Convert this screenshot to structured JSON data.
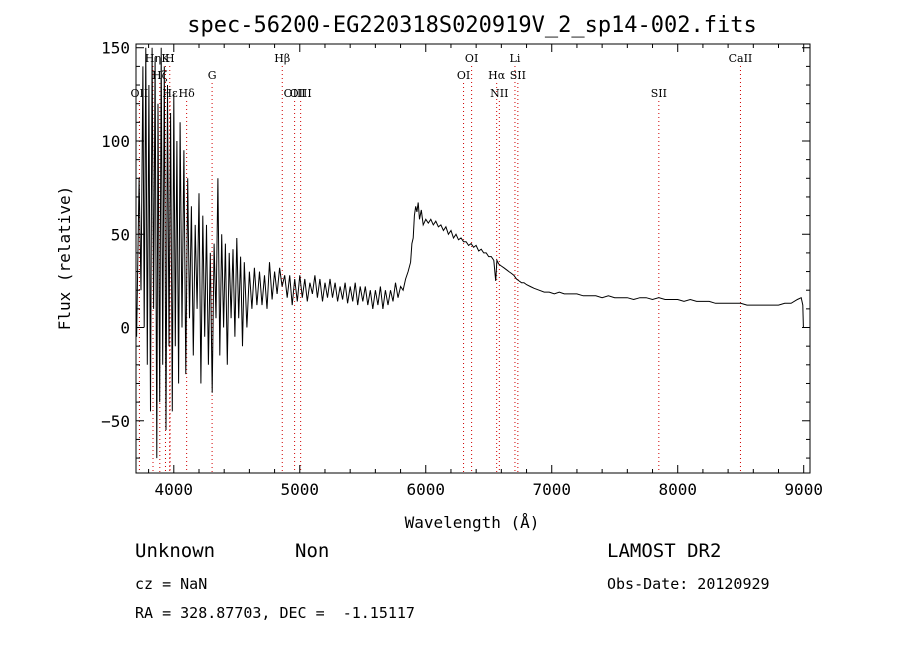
{
  "chart_data": {
    "type": "line",
    "title": "spec-56200-EG220318S020919V_2_sp14-002.fits",
    "xlabel": "Wavelength (Å)",
    "ylabel": "Flux (relative)",
    "xlim": [
      3700,
      9050
    ],
    "ylim": [
      -78,
      152
    ],
    "x_ticks": [
      4000,
      5000,
      6000,
      7000,
      8000,
      9000
    ],
    "y_ticks": [
      -50,
      0,
      50,
      100,
      150
    ],
    "series": [
      {
        "color": "#000000",
        "points": [
          [
            3705,
            -5
          ],
          [
            3725,
            80
          ],
          [
            3740,
            20
          ],
          [
            3755,
            140
          ],
          [
            3765,
            0
          ],
          [
            3778,
            150
          ],
          [
            3790,
            -20
          ],
          [
            3802,
            130
          ],
          [
            3815,
            -45
          ],
          [
            3828,
            150
          ],
          [
            3840,
            10
          ],
          [
            3852,
            145
          ],
          [
            3865,
            -70
          ],
          [
            3875,
            120
          ],
          [
            3888,
            -40
          ],
          [
            3900,
            150
          ],
          [
            3912,
            -20
          ],
          [
            3925,
            140
          ],
          [
            3938,
            -55
          ],
          [
            3950,
            130
          ],
          [
            3962,
            -10
          ],
          [
            3975,
            115
          ],
          [
            3988,
            -45
          ],
          [
            4000,
            125
          ],
          [
            4012,
            -10
          ],
          [
            4025,
            100
          ],
          [
            4038,
            -30
          ],
          [
            4050,
            110
          ],
          [
            4065,
            0
          ],
          [
            4080,
            95
          ],
          [
            4095,
            -25
          ],
          [
            4110,
            80
          ],
          [
            4125,
            5
          ],
          [
            4140,
            65
          ],
          [
            4155,
            -15
          ],
          [
            4170,
            55
          ],
          [
            4185,
            10
          ],
          [
            4200,
            72
          ],
          [
            4215,
            -30
          ],
          [
            4230,
            60
          ],
          [
            4245,
            -5
          ],
          [
            4260,
            55
          ],
          [
            4275,
            -20
          ],
          [
            4290,
            40
          ],
          [
            4305,
            -35
          ],
          [
            4320,
            45
          ],
          [
            4335,
            5
          ],
          [
            4350,
            80
          ],
          [
            4365,
            -15
          ],
          [
            4380,
            50
          ],
          [
            4395,
            0
          ],
          [
            4410,
            45
          ],
          [
            4425,
            -20
          ],
          [
            4440,
            40
          ],
          [
            4455,
            5
          ],
          [
            4470,
            42
          ],
          [
            4485,
            -5
          ],
          [
            4500,
            48
          ],
          [
            4515,
            5
          ],
          [
            4530,
            38
          ],
          [
            4545,
            -10
          ],
          [
            4560,
            35
          ],
          [
            4580,
            0
          ],
          [
            4600,
            30
          ],
          [
            4620,
            10
          ],
          [
            4640,
            32
          ],
          [
            4660,
            12
          ],
          [
            4680,
            30
          ],
          [
            4700,
            12
          ],
          [
            4720,
            28
          ],
          [
            4740,
            10
          ],
          [
            4760,
            35
          ],
          [
            4780,
            15
          ],
          [
            4800,
            30
          ],
          [
            4820,
            18
          ],
          [
            4840,
            32
          ],
          [
            4860,
            22
          ],
          [
            4880,
            28
          ],
          [
            4900,
            16
          ],
          [
            4920,
            28
          ],
          [
            4940,
            12
          ],
          [
            4960,
            26
          ],
          [
            4980,
            14
          ],
          [
            5000,
            28
          ],
          [
            5020,
            16
          ],
          [
            5040,
            26
          ],
          [
            5060,
            14
          ],
          [
            5080,
            24
          ],
          [
            5100,
            18
          ],
          [
            5120,
            28
          ],
          [
            5140,
            16
          ],
          [
            5160,
            26
          ],
          [
            5180,
            14
          ],
          [
            5200,
            24
          ],
          [
            5220,
            16
          ],
          [
            5240,
            26
          ],
          [
            5260,
            16
          ],
          [
            5280,
            24
          ],
          [
            5300,
            14
          ],
          [
            5320,
            22
          ],
          [
            5340,
            15
          ],
          [
            5360,
            24
          ],
          [
            5380,
            13
          ],
          [
            5400,
            22
          ],
          [
            5420,
            14
          ],
          [
            5440,
            24
          ],
          [
            5460,
            12
          ],
          [
            5480,
            22
          ],
          [
            5500,
            14
          ],
          [
            5520,
            22
          ],
          [
            5540,
            12
          ],
          [
            5560,
            20
          ],
          [
            5580,
            10
          ],
          [
            5600,
            20
          ],
          [
            5620,
            12
          ],
          [
            5640,
            22
          ],
          [
            5660,
            10
          ],
          [
            5680,
            20
          ],
          [
            5700,
            12
          ],
          [
            5720,
            20
          ],
          [
            5740,
            14
          ],
          [
            5760,
            24
          ],
          [
            5780,
            16
          ],
          [
            5800,
            22
          ],
          [
            5820,
            20
          ],
          [
            5840,
            26
          ],
          [
            5860,
            30
          ],
          [
            5880,
            35
          ],
          [
            5890,
            45
          ],
          [
            5900,
            48
          ],
          [
            5910,
            60
          ],
          [
            5920,
            65
          ],
          [
            5930,
            62
          ],
          [
            5940,
            67
          ],
          [
            5950,
            58
          ],
          [
            5965,
            63
          ],
          [
            5980,
            55
          ],
          [
            6000,
            58
          ],
          [
            6020,
            56
          ],
          [
            6040,
            58
          ],
          [
            6060,
            55
          ],
          [
            6080,
            57
          ],
          [
            6100,
            54
          ],
          [
            6120,
            55
          ],
          [
            6140,
            52
          ],
          [
            6160,
            54
          ],
          [
            6180,
            50
          ],
          [
            6200,
            52
          ],
          [
            6220,
            48
          ],
          [
            6240,
            50
          ],
          [
            6260,
            47
          ],
          [
            6280,
            48
          ],
          [
            6300,
            46
          ],
          [
            6320,
            46
          ],
          [
            6340,
            44
          ],
          [
            6360,
            45
          ],
          [
            6380,
            43
          ],
          [
            6400,
            44
          ],
          [
            6420,
            41
          ],
          [
            6440,
            42
          ],
          [
            6460,
            40
          ],
          [
            6480,
            40
          ],
          [
            6500,
            38
          ],
          [
            6520,
            38
          ],
          [
            6540,
            36
          ],
          [
            6555,
            25
          ],
          [
            6565,
            36
          ],
          [
            6580,
            34
          ],
          [
            6600,
            33
          ],
          [
            6620,
            32
          ],
          [
            6640,
            31
          ],
          [
            6660,
            30
          ],
          [
            6680,
            29
          ],
          [
            6700,
            28
          ],
          [
            6720,
            26
          ],
          [
            6740,
            25
          ],
          [
            6760,
            24
          ],
          [
            6780,
            24
          ],
          [
            6800,
            23
          ],
          [
            6830,
            22
          ],
          [
            6860,
            21
          ],
          [
            6900,
            20
          ],
          [
            6940,
            19
          ],
          [
            6980,
            19
          ],
          [
            7020,
            18
          ],
          [
            7060,
            19
          ],
          [
            7100,
            18
          ],
          [
            7150,
            18
          ],
          [
            7200,
            18
          ],
          [
            7250,
            17
          ],
          [
            7300,
            17
          ],
          [
            7350,
            17
          ],
          [
            7400,
            16
          ],
          [
            7450,
            17
          ],
          [
            7500,
            16
          ],
          [
            7550,
            16
          ],
          [
            7600,
            16
          ],
          [
            7650,
            15
          ],
          [
            7700,
            16
          ],
          [
            7750,
            16
          ],
          [
            7800,
            15
          ],
          [
            7850,
            16
          ],
          [
            7900,
            15
          ],
          [
            7950,
            15
          ],
          [
            8000,
            15
          ],
          [
            8050,
            14
          ],
          [
            8100,
            15
          ],
          [
            8150,
            14
          ],
          [
            8200,
            14
          ],
          [
            8250,
            14
          ],
          [
            8300,
            13
          ],
          [
            8350,
            13
          ],
          [
            8400,
            13
          ],
          [
            8450,
            13
          ],
          [
            8500,
            13
          ],
          [
            8550,
            12
          ],
          [
            8600,
            12
          ],
          [
            8650,
            12
          ],
          [
            8700,
            12
          ],
          [
            8750,
            12
          ],
          [
            8800,
            12
          ],
          [
            8850,
            13
          ],
          [
            8900,
            13
          ],
          [
            8950,
            15
          ],
          [
            8980,
            16
          ],
          [
            8993,
            12
          ],
          [
            8998,
            0
          ]
        ]
      }
    ],
    "spectral_lines": [
      {
        "label": "OII",
        "wavelength": 3727,
        "row": 3
      },
      {
        "label": "Hη",
        "wavelength": 3835,
        "row": 1
      },
      {
        "label": "Hζ",
        "wavelength": 3889,
        "row": 2
      },
      {
        "label": "K",
        "wavelength": 3934,
        "row": 1
      },
      {
        "label": "H",
        "wavelength": 3968,
        "row": 1
      },
      {
        "label": "Hε",
        "wavelength": 3970,
        "row": 3
      },
      {
        "label": "Hδ",
        "wavelength": 4102,
        "row": 3
      },
      {
        "label": "G",
        "wavelength": 4304,
        "row": 2
      },
      {
        "label": "Hβ",
        "wavelength": 4861,
        "row": 1
      },
      {
        "label": "OIII",
        "wavelength": 4959,
        "row": 3
      },
      {
        "label": "OIII",
        "wavelength": 5007,
        "row": 3
      },
      {
        "label": "OI",
        "wavelength": 6300,
        "row": 2
      },
      {
        "label": "OI",
        "wavelength": 6364,
        "row": 1
      },
      {
        "label": "Hα",
        "wavelength": 6563,
        "row": 2
      },
      {
        "label": "NII",
        "wavelength": 6584,
        "row": 3
      },
      {
        "label": "Li",
        "wavelength": 6708,
        "row": 1
      },
      {
        "label": "SII",
        "wavelength": 6731,
        "row": 2
      },
      {
        "label": "SII",
        "wavelength": 7850,
        "row": 3
      },
      {
        "label": "CaII",
        "wavelength": 8498,
        "row": 1
      }
    ],
    "line_color": "#d00000",
    "grid": false,
    "legend": "none"
  },
  "info": {
    "class": "Unknown",
    "subclass": "Non",
    "survey": "LAMOST DR2",
    "cz": "cz = NaN",
    "obs_date": "Obs-Date: 20120929",
    "radec": "RA = 328.87703, DEC =  -1.15117"
  }
}
